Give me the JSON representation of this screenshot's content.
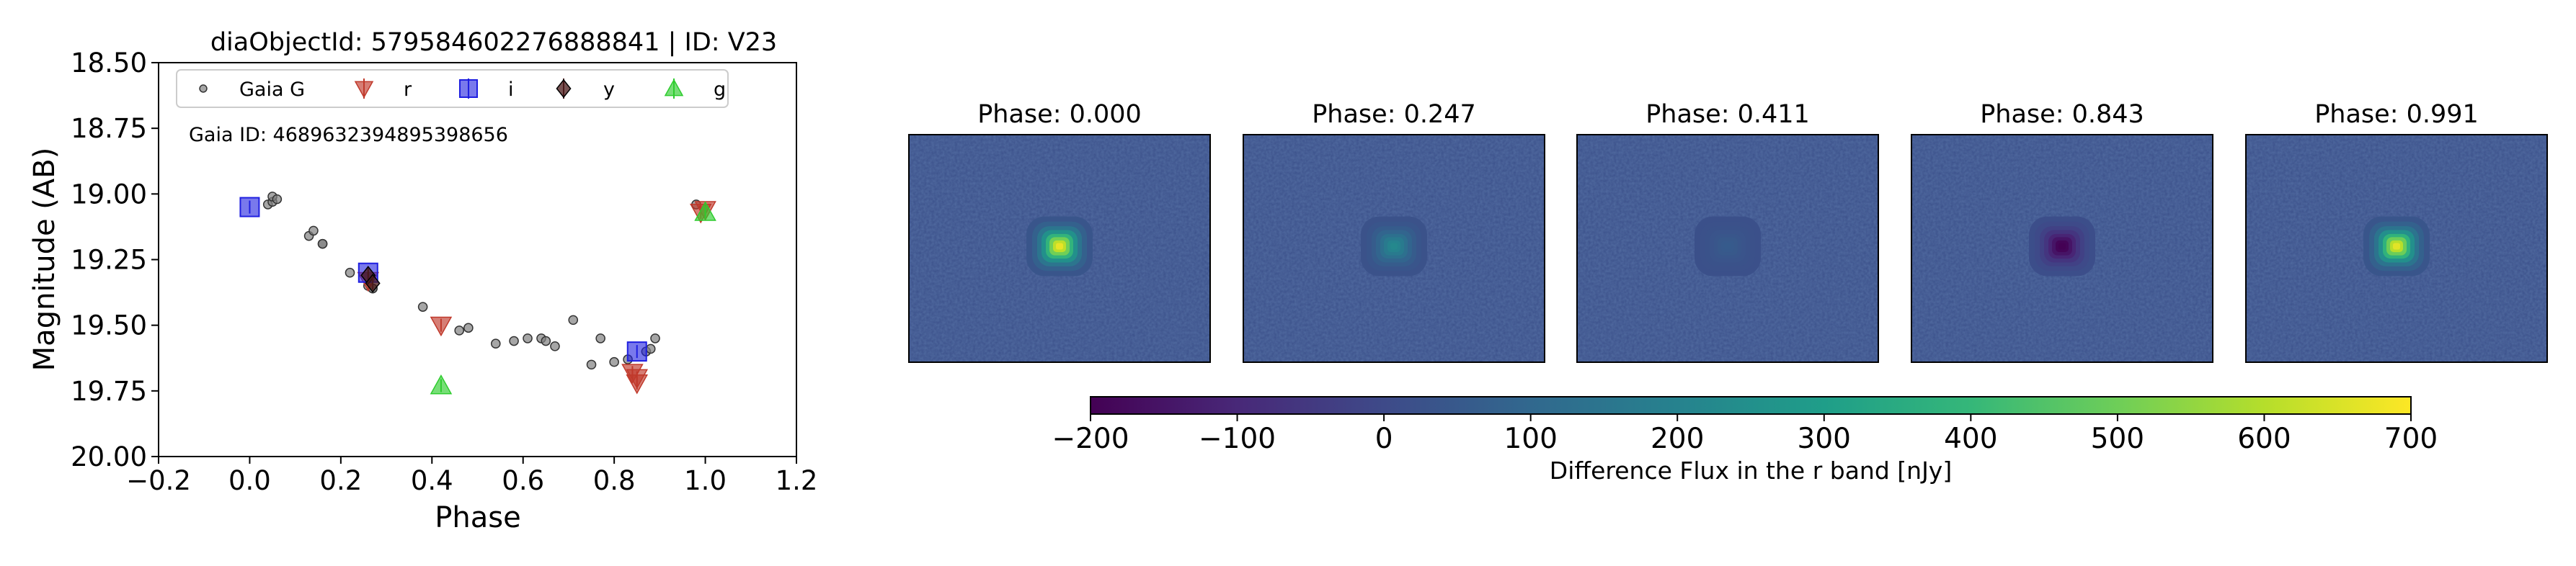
{
  "chart_data": [
    {
      "type": "scatter",
      "title": "diaObjectId: 579584602276888841 | ID: V23",
      "xlabel": "Phase",
      "ylabel": "Magnitude (AB)",
      "xlim": [
        -0.2,
        1.2
      ],
      "ylim": [
        20.0,
        18.5
      ],
      "y_inverted": true,
      "xticks": [
        "−0.2",
        "0.0",
        "0.2",
        "0.4",
        "0.6",
        "0.8",
        "1.0",
        "1.2"
      ],
      "yticks": [
        "18.50",
        "18.75",
        "19.00",
        "19.25",
        "19.50",
        "19.75",
        "20.00"
      ],
      "grid": false,
      "legend_position": "top",
      "annotation": "Gaia ID: 4689632394895398656",
      "series": [
        {
          "name": "Gaia G",
          "marker": "circle",
          "color": "#808080",
          "points": [
            [
              0.04,
              19.04
            ],
            [
              0.05,
              19.03
            ],
            [
              0.05,
              19.01
            ],
            [
              0.06,
              19.02
            ],
            [
              0.13,
              19.16
            ],
            [
              0.14,
              19.14
            ],
            [
              0.16,
              19.19
            ],
            [
              0.16,
              19.19
            ],
            [
              0.22,
              19.3
            ],
            [
              0.26,
              19.35
            ],
            [
              0.27,
              19.36
            ],
            [
              0.27,
              19.36
            ],
            [
              0.38,
              19.43
            ],
            [
              0.46,
              19.52
            ],
            [
              0.48,
              19.51
            ],
            [
              0.54,
              19.57
            ],
            [
              0.58,
              19.56
            ],
            [
              0.61,
              19.55
            ],
            [
              0.64,
              19.55
            ],
            [
              0.65,
              19.56
            ],
            [
              0.67,
              19.58
            ],
            [
              0.71,
              19.48
            ],
            [
              0.75,
              19.65
            ],
            [
              0.77,
              19.55
            ],
            [
              0.8,
              19.64
            ],
            [
              0.83,
              19.63
            ],
            [
              0.87,
              19.6
            ],
            [
              0.88,
              19.59
            ],
            [
              0.89,
              19.55
            ],
            [
              0.98,
              19.04
            ]
          ]
        },
        {
          "name": "r",
          "marker": "triangle-down",
          "color": "#c0392b",
          "points": [
            [
              0.26,
              19.33
            ],
            [
              0.42,
              19.5
            ],
            [
              0.84,
              19.68
            ],
            [
              0.85,
              19.7
            ],
            [
              0.85,
              19.72
            ],
            [
              0.99,
              19.07
            ],
            [
              1.0,
              19.06
            ]
          ]
        },
        {
          "name": "i",
          "marker": "square",
          "color": "#1f1fe0",
          "points": [
            [
              0.0,
              19.05
            ],
            [
              0.26,
              19.3
            ],
            [
              0.85,
              19.6
            ]
          ]
        },
        {
          "name": "y",
          "marker": "diamond",
          "color": "#4a1a1a",
          "points": [
            [
              0.26,
              19.31
            ],
            [
              0.27,
              19.34
            ]
          ]
        },
        {
          "name": "g",
          "marker": "triangle-up",
          "color": "#2ecc2e",
          "points": [
            [
              0.42,
              19.73
            ],
            [
              1.0,
              19.07
            ]
          ]
        }
      ]
    },
    {
      "type": "heatmap",
      "panels": [
        {
          "title": "Phase: 0.000",
          "center_flux": 700
        },
        {
          "title": "Phase: 0.247",
          "center_flux": 230
        },
        {
          "title": "Phase: 0.411",
          "center_flux": 60
        },
        {
          "title": "Phase: 0.843",
          "center_flux": -220
        },
        {
          "title": "Phase: 0.991",
          "center_flux": 690
        }
      ],
      "background_flux": 20,
      "colormap": "viridis",
      "colorbar": {
        "min": -200,
        "max": 700,
        "ticks": [
          "−200",
          "−100",
          "0",
          "100",
          "200",
          "300",
          "400",
          "500",
          "600",
          "700"
        ],
        "label": "Difference Flux in the r band [nJy]"
      }
    }
  ]
}
